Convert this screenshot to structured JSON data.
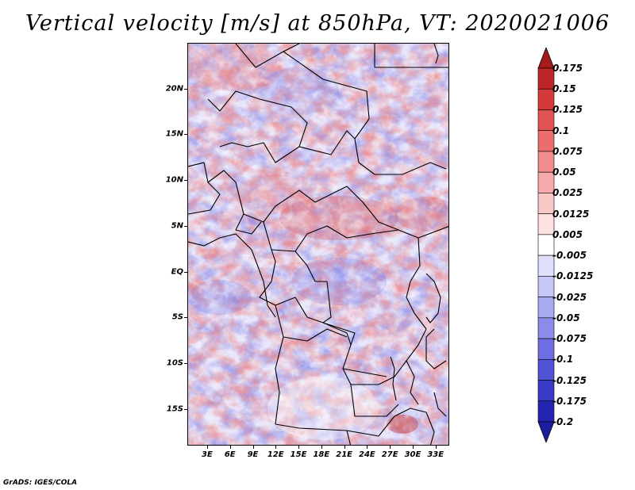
{
  "title": "Vertical velocity [m/s] at 850hPa, VT: 2020021006",
  "credit": "GrADS: IGES/COLA",
  "map": {
    "lat_range": [
      -19,
      25
    ],
    "lon_range": [
      0.4,
      34.8
    ],
    "lat_ticks": [
      {
        "label": "20N",
        "value": 20
      },
      {
        "label": "15N",
        "value": 15
      },
      {
        "label": "10N",
        "value": 10
      },
      {
        "label": "5N",
        "value": 5
      },
      {
        "label": "EQ",
        "value": 0
      },
      {
        "label": "5S",
        "value": -5
      },
      {
        "label": "10S",
        "value": -10
      },
      {
        "label": "15S",
        "value": -15
      }
    ],
    "lon_ticks": [
      {
        "label": "3E",
        "value": 3
      },
      {
        "label": "6E",
        "value": 6
      },
      {
        "label": "9E",
        "value": 9
      },
      {
        "label": "12E",
        "value": 12
      },
      {
        "label": "15E",
        "value": 15
      },
      {
        "label": "18E",
        "value": 18
      },
      {
        "label": "21E",
        "value": 21
      },
      {
        "label": "24E",
        "value": 24
      },
      {
        "label": "27E",
        "value": 27
      },
      {
        "label": "30E",
        "value": 30
      },
      {
        "label": "33E",
        "value": 33
      }
    ]
  },
  "colorbar": {
    "levels": [
      {
        "label": "0.175",
        "color": "#a51b1b"
      },
      {
        "label": "0.15",
        "color": "#bd2626"
      },
      {
        "label": "0.125",
        "color": "#d43a3a"
      },
      {
        "label": "0.1",
        "color": "#e05353"
      },
      {
        "label": "0.075",
        "color": "#ea6e6e"
      },
      {
        "label": "0.05",
        "color": "#f18c8c"
      },
      {
        "label": "0.025",
        "color": "#f6aaaa"
      },
      {
        "label": "0.0125",
        "color": "#fac7c7"
      },
      {
        "label": "0.005",
        "color": "#fde0e0"
      },
      {
        "label": "-0.005",
        "color": "#ffffff"
      },
      {
        "label": "-0.0125",
        "color": "#e0e0fc"
      },
      {
        "label": "-0.025",
        "color": "#c6c6f8"
      },
      {
        "label": "-0.05",
        "color": "#a9a9f2"
      },
      {
        "label": "-0.075",
        "color": "#8b8bec"
      },
      {
        "label": "-0.1",
        "color": "#6e6ee2"
      },
      {
        "label": "-0.125",
        "color": "#5252d6"
      },
      {
        "label": "-0.175",
        "color": "#3a3ac6"
      },
      {
        "label": "-0.2",
        "color": "#2424b0"
      }
    ],
    "top_arrow_color": "#a51b1b",
    "bottom_arrow_color": "#1c1ca0"
  }
}
